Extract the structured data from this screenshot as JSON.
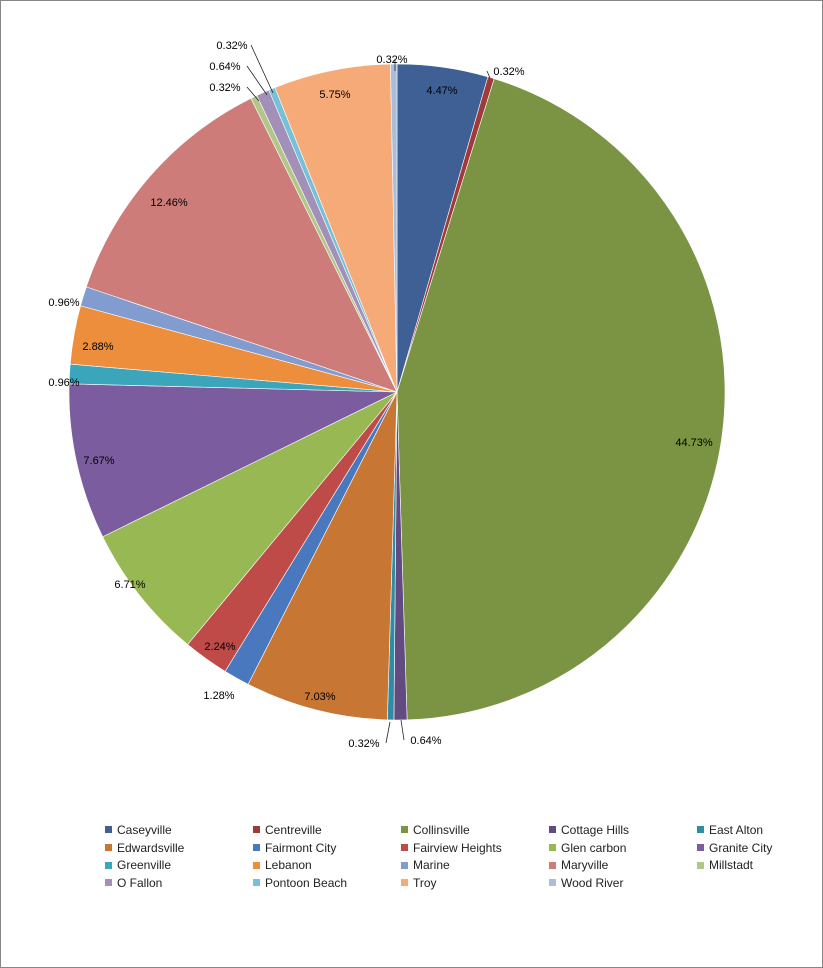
{
  "chart_data": {
    "type": "pie",
    "categories": [
      "Caseyville",
      "Centreville",
      "Collinsville",
      "Cottage Hills",
      "East Alton",
      "Edwardsville",
      "Fairmont City",
      "Fairview Heights",
      "Glen carbon",
      "Granite City",
      "Greenville",
      "Lebanon",
      "Marine",
      "Maryville",
      "Millstadt",
      "O Fallon",
      "Pontoon Beach",
      "Troy",
      "Wood River"
    ],
    "values": [
      4.47,
      0.32,
      44.73,
      0.64,
      0.32,
      7.03,
      1.28,
      2.24,
      6.71,
      7.67,
      0.96,
      2.88,
      0.96,
      12.46,
      0.32,
      0.64,
      0.32,
      5.75,
      0.32
    ],
    "labels": [
      "4.47%",
      "0.32%",
      "44.73%",
      "0.64%",
      "0.32%",
      "7.03%",
      "1.28%",
      "2.24%",
      "6.71%",
      "7.67%",
      "0.96%",
      "2.88%",
      "0.96%",
      "12.46%",
      "0.32%",
      "0.64%",
      "0.32%",
      "5.75%",
      "0.32%"
    ],
    "colors": [
      "#3f6095",
      "#9f3a38",
      "#7a9443",
      "#624b80",
      "#2f8ca4",
      "#c77633",
      "#4a78bf",
      "#bf4b48",
      "#98b854",
      "#7b5c9f",
      "#3ba5bb",
      "#ec8e3c",
      "#839ccf",
      "#cd7c7a",
      "#b0c788",
      "#a290b9",
      "#77c1d8",
      "#f6aa78",
      "#a9bedc"
    ],
    "legend_position": "bottom"
  }
}
